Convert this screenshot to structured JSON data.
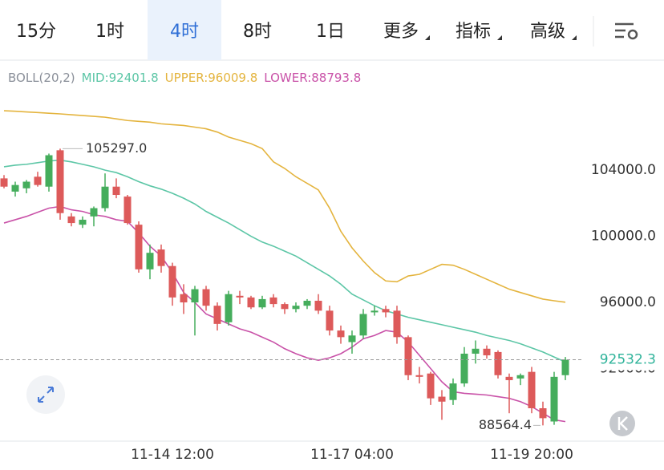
{
  "tabs": [
    "15分",
    "1时",
    "4时",
    "8时",
    "1日",
    "更多",
    "指标",
    "高级"
  ],
  "selected_tab": 2,
  "dropdown_tabs": [
    5,
    6,
    7
  ],
  "chart_data": {
    "type": "candlestick",
    "indicator": "BOLL(20,2)",
    "separator": ":",
    "categories": [
      null,
      null,
      null,
      null,
      null,
      null,
      null,
      null,
      null,
      null,
      null,
      null,
      null,
      null,
      null,
      "11-14 12:00",
      null,
      null,
      null,
      null,
      null,
      null,
      null,
      null,
      null,
      null,
      null,
      null,
      null,
      null,
      null,
      "11-17 04:00",
      null,
      null,
      null,
      null,
      null,
      null,
      null,
      null,
      null,
      null,
      null,
      null,
      null,
      null,
      null,
      "11-19 20:00",
      null,
      null,
      null
    ],
    "open": [
      103500,
      102700,
      102900,
      103600,
      103000,
      105200,
      101200,
      100700,
      101200,
      101700,
      103000,
      102400,
      100700,
      98000,
      99200,
      98200,
      96500,
      96000,
      96800,
      95800,
      94800,
      96400,
      96300,
      95700,
      96300,
      95900,
      95600,
      95800,
      96100,
      95500,
      94300,
      93600,
      94000,
      95400,
      95600,
      95500,
      93900,
      91600,
      91700,
      90300,
      90100,
      91100,
      92900,
      93200,
      93000,
      91500,
      91400,
      91800,
      89600,
      88800,
      91600
    ],
    "high": [
      103700,
      103300,
      103400,
      103900,
      105000,
      105297,
      101400,
      101200,
      101800,
      103800,
      103500,
      102500,
      100900,
      99500,
      99500,
      98400,
      97100,
      97000,
      97000,
      96000,
      96700,
      96700,
      96400,
      96400,
      96500,
      96000,
      96000,
      96200,
      96500,
      95800,
      94600,
      94300,
      95600,
      95800,
      95800,
      95800,
      94000,
      92100,
      91800,
      90700,
      91400,
      93300,
      93700,
      93400,
      93100,
      91700,
      91700,
      92100,
      90000,
      91800,
      92700
    ],
    "low": [
      102900,
      102400,
      102600,
      103000,
      102700,
      101000,
      100600,
      100500,
      100600,
      101500,
      102300,
      100700,
      97800,
      97400,
      97800,
      95800,
      95300,
      94000,
      95500,
      94300,
      94600,
      95900,
      95600,
      95600,
      95700,
      95300,
      95400,
      95600,
      95300,
      94000,
      93500,
      92900,
      93800,
      95200,
      95100,
      93500,
      91300,
      91100,
      89800,
      88900,
      89800,
      90900,
      92300,
      92600,
      91400,
      89300,
      91000,
      89300,
      88564.4,
      88600,
      91300
    ],
    "close": [
      103000,
      103100,
      103300,
      103100,
      104900,
      101400,
      100800,
      101000,
      101700,
      103000,
      102500,
      100800,
      98000,
      99000,
      98200,
      96300,
      96000,
      96800,
      95800,
      94700,
      96500,
      96300,
      95700,
      96200,
      95900,
      95600,
      95800,
      96100,
      95500,
      94300,
      93900,
      94000,
      95300,
      95500,
      95400,
      93900,
      91600,
      91500,
      90200,
      90000,
      91100,
      92900,
      93200,
      92800,
      91600,
      91300,
      91600,
      89600,
      89000,
      91500,
      92532.3
    ],
    "up_color": "#45ad5c",
    "down_color": "#dd5a5a",
    "series": [
      {
        "name": "MID",
        "color": "#5cc6a6",
        "values": [
          104200,
          104300,
          104350,
          104450,
          104550,
          104600,
          104500,
          104350,
          104200,
          104000,
          103850,
          103600,
          103300,
          103050,
          102850,
          102600,
          102300,
          101950,
          101500,
          101150,
          100800,
          100400,
          100000,
          99650,
          99400,
          99100,
          98800,
          98400,
          98000,
          97600,
          97100,
          96500,
          96150,
          95800,
          95500,
          95300,
          95100,
          94950,
          94800,
          94650,
          94500,
          94350,
          94200,
          94000,
          93850,
          93700,
          93500,
          93250,
          93000,
          92700,
          92401.8
        ]
      },
      {
        "name": "UPPER",
        "color": "#e4b43e",
        "values": [
          107590,
          107560,
          107520,
          107480,
          107440,
          107400,
          107350,
          107300,
          107250,
          107200,
          107100,
          107000,
          106950,
          106900,
          106800,
          106750,
          106700,
          106600,
          106500,
          106300,
          106000,
          105800,
          105600,
          105300,
          104500,
          104100,
          103600,
          103200,
          102800,
          101700,
          100300,
          99300,
          98500,
          97800,
          97300,
          97250,
          97600,
          97700,
          98000,
          98300,
          98250,
          98000,
          97700,
          97400,
          97100,
          96800,
          96600,
          96400,
          96200,
          96100,
          96009.8
        ]
      },
      {
        "name": "LOWER",
        "color": "#c952a8",
        "values": [
          100800,
          101000,
          101200,
          101450,
          101700,
          101800,
          101600,
          101500,
          101300,
          101200,
          101000,
          100900,
          100200,
          99400,
          98800,
          97800,
          96600,
          96000,
          95300,
          95000,
          94700,
          94400,
          94200,
          93900,
          93600,
          93200,
          92900,
          92650,
          92500,
          92650,
          92900,
          93300,
          93800,
          94000,
          94300,
          94200,
          93600,
          92800,
          92000,
          91200,
          90600,
          90500,
          90450,
          90400,
          90300,
          90200,
          90000,
          89700,
          89300,
          88900,
          88793.8
        ]
      }
    ],
    "max_label": "105297.0",
    "min_label": "88564.4",
    "ylim": [
      88000,
      109000
    ],
    "yticks": [
      {
        "value": 104000,
        "label": "104000.0"
      },
      {
        "value": 100000,
        "label": "100000.0"
      },
      {
        "value": 96000,
        "label": "96000.0"
      },
      {
        "value": 92000,
        "label": "92000.0"
      }
    ]
  }
}
